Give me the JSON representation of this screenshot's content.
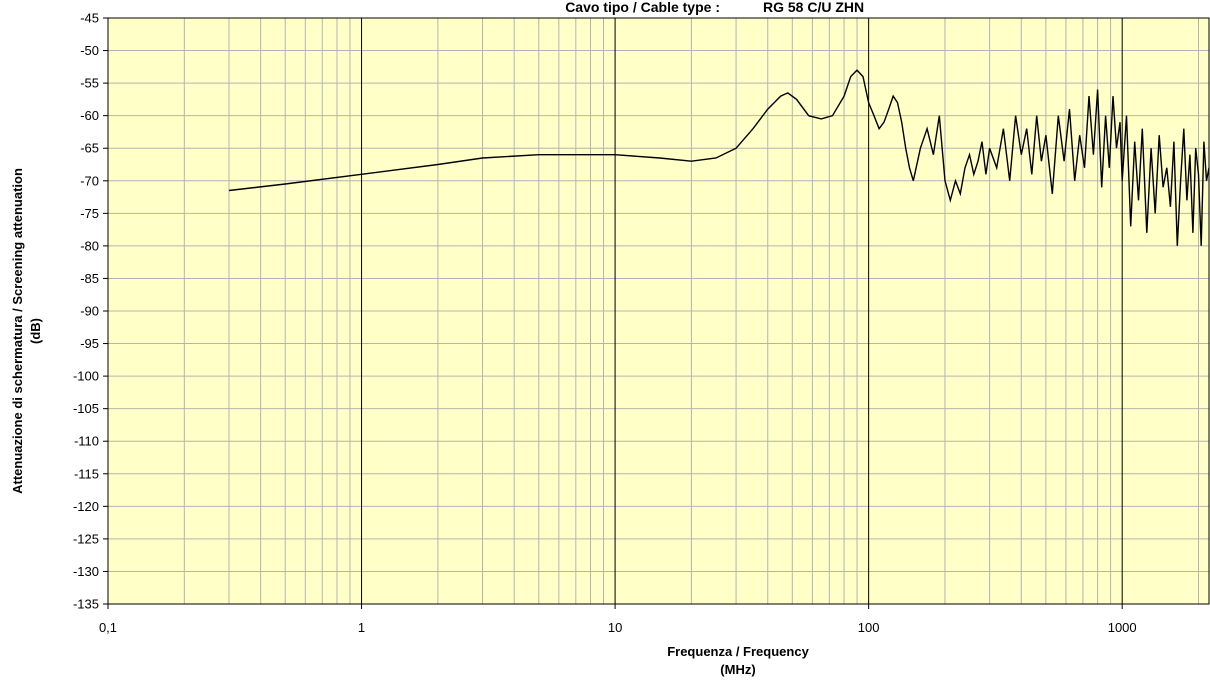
{
  "chart_data": {
    "type": "line",
    "title_prefix": "Cavo tipo / Cable type :",
    "title_value": "RG 58 C/U ZHN",
    "xlabel": "Frequenza / Frequency",
    "xunit": "(MHz)",
    "ylabel": "Attenuazione di schermatura / Screening attenuation",
    "yunit": "(dB)",
    "x_scale": "log",
    "xlim": [
      0.1,
      2200
    ],
    "ylim": [
      -135,
      -45
    ],
    "x_ticks": [
      {
        "value": 0.1,
        "label": "0,1"
      },
      {
        "value": 1,
        "label": "1"
      },
      {
        "value": 10,
        "label": "10"
      },
      {
        "value": 100,
        "label": "100"
      },
      {
        "value": 1000,
        "label": "1000"
      }
    ],
    "y_ticks": [
      "-45",
      "-50",
      "-55",
      "-60",
      "-65",
      "-70",
      "-75",
      "-80",
      "-85",
      "-90",
      "-95",
      "-100",
      "-105",
      "-110",
      "-115",
      "-120",
      "-125",
      "-130",
      "-135"
    ],
    "grid": true,
    "colors": {
      "plot_background": "#ffffc8",
      "line": "#000000",
      "major_grid": "#000000",
      "minor_grid": "#b4b4b4"
    },
    "series": [
      {
        "x": [
          0.3,
          0.5,
          1,
          2,
          3,
          5,
          7,
          10,
          15,
          20,
          25,
          30,
          35,
          40,
          45,
          48,
          52,
          58,
          65,
          72,
          80,
          85,
          90,
          95,
          100,
          105,
          110,
          115,
          120,
          125,
          130,
          135,
          140,
          145,
          150,
          160,
          170,
          180,
          190,
          200,
          210,
          220,
          230,
          240,
          250,
          260,
          270,
          280,
          290,
          300,
          320,
          340,
          360,
          380,
          400,
          420,
          440,
          460,
          480,
          500,
          530,
          560,
          590,
          620,
          650,
          680,
          710,
          740,
          770,
          800,
          830,
          860,
          890,
          920,
          950,
          980,
          1000,
          1040,
          1080,
          1120,
          1160,
          1200,
          1250,
          1300,
          1350,
          1400,
          1450,
          1500,
          1550,
          1600,
          1650,
          1700,
          1750,
          1800,
          1850,
          1900,
          1950,
          2000,
          2050,
          2100,
          2150,
          2200
        ],
        "y": [
          -71.5,
          -70.5,
          -69,
          -67.5,
          -66.5,
          -66,
          -66,
          -66,
          -66.5,
          -67,
          -66.5,
          -65,
          -62,
          -59,
          -57,
          -56.5,
          -57.5,
          -60,
          -60.5,
          -60,
          -57,
          -54,
          -53,
          -54,
          -58,
          -60,
          -62,
          -61,
          -59,
          -57,
          -58,
          -61,
          -65,
          -68,
          -70,
          -65,
          -62,
          -66,
          -60,
          -70,
          -73,
          -70,
          -72,
          -68,
          -66,
          -69,
          -67,
          -64,
          -69,
          -65,
          -68,
          -62,
          -70,
          -60,
          -66,
          -62,
          -69,
          -60,
          -67,
          -63,
          -72,
          -60,
          -67,
          -59,
          -70,
          -63,
          -68,
          -57,
          -66,
          -56,
          -71,
          -60,
          -68,
          -57,
          -65,
          -61,
          -70,
          -60,
          -77,
          -64,
          -73,
          -62,
          -78,
          -65,
          -75,
          -63,
          -71,
          -68,
          -74,
          -64,
          -80,
          -70,
          -62,
          -73,
          -66,
          -78,
          -65,
          -69,
          -80,
          -64,
          -70,
          -68
        ]
      }
    ]
  }
}
